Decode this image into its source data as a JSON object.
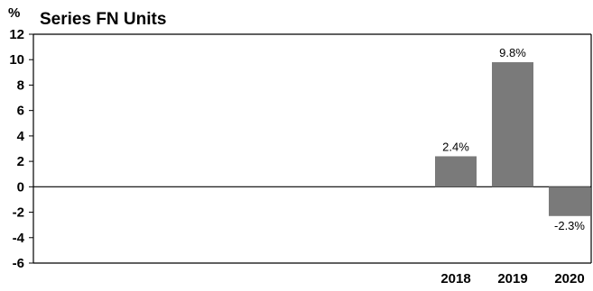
{
  "chart_data": {
    "type": "bar",
    "title": "Series FN Units",
    "unit_label": "%",
    "categories": [
      "2018",
      "2019",
      "2020"
    ],
    "values": [
      2.4,
      9.8,
      -2.3
    ],
    "data_labels": [
      "2.4%",
      "9.8%",
      "-2.3%"
    ],
    "ylim": [
      -6,
      12
    ],
    "yticks": [
      12,
      10,
      8,
      6,
      4,
      2,
      0,
      -2,
      -4,
      -6
    ],
    "grid": false,
    "bar_color": "#7a7a7a"
  }
}
